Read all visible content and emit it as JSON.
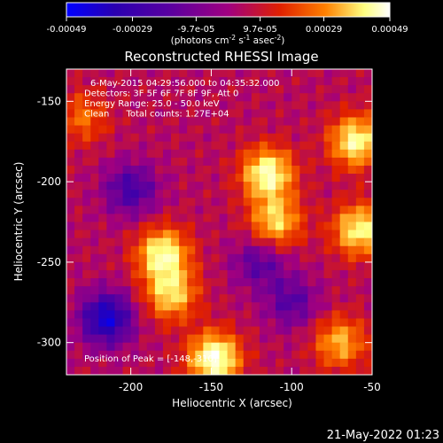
{
  "chart_data": {
    "type": "heatmap",
    "title": "Reconstructed RHESSI Image",
    "xlabel": "Heliocentric X (arcsec)",
    "ylabel": "Heliocentric Y (arcsec)",
    "xlim": [
      -240,
      -50
    ],
    "ylim": [
      -320,
      -130
    ],
    "x_ticks": [
      "-200",
      "-150",
      "-100",
      "-50"
    ],
    "x_tick_values": [
      -200,
      -150,
      -100,
      -50
    ],
    "y_ticks": [
      "-150",
      "-200",
      "-250",
      "-300"
    ],
    "y_tick_values": [
      -150,
      -200,
      -250,
      -300
    ],
    "colorbar": {
      "ticks": [
        "-0.00049",
        "-0.00029",
        "-9.7e-05",
        "9.7e-05",
        "0.00029",
        "0.00049"
      ],
      "tick_values": [
        -0.00049,
        -0.00029,
        -9.7e-05,
        9.7e-05,
        0.00029,
        0.00049
      ],
      "range": [
        -0.00049,
        0.00049
      ],
      "unit_prefix": "(photons cm",
      "unit_exp1": "-2",
      "unit_mid": " s",
      "unit_exp2": "-1",
      "unit_mid2": " asec",
      "unit_exp3": "-2",
      "unit_suffix": ")",
      "colormap": [
        "#0000ff",
        "#2a00b0",
        "#5a00a0",
        "#a00080",
        "#e02000",
        "#ff8000",
        "#ffff80",
        "#ffffff"
      ]
    },
    "annotations": [
      "6-May-2015 04:29:56.000 to 04:35:32.000",
      "Detectors: 3F 5F 6F 7F 8F 9F, Att 0",
      "Energy Range: 25.0 - 50.0 keV",
      "Clean      Total counts: 1.27E+04"
    ],
    "peak_label": "Position of Peak = [-148,-310]",
    "peak_position": [
      -148,
      -310
    ],
    "bright_regions": [
      {
        "x": -115,
        "y": -195,
        "level": 0.9
      },
      {
        "x": -110,
        "y": -225,
        "level": 0.7
      },
      {
        "x": -180,
        "y": -245,
        "level": 0.85
      },
      {
        "x": -175,
        "y": -270,
        "level": 0.7
      },
      {
        "x": -60,
        "y": -175,
        "level": 0.85
      },
      {
        "x": -58,
        "y": -230,
        "level": 0.8
      },
      {
        "x": -148,
        "y": -310,
        "level": 1.0
      },
      {
        "x": -70,
        "y": -300,
        "level": 0.6
      },
      {
        "x": -230,
        "y": -160,
        "level": 0.4
      }
    ],
    "dark_regions": [
      {
        "x": -215,
        "y": -285,
        "level": -0.8
      },
      {
        "x": -200,
        "y": -205,
        "level": -0.5
      },
      {
        "x": -120,
        "y": -250,
        "level": -0.4
      },
      {
        "x": -100,
        "y": -275,
        "level": -0.4
      }
    ]
  },
  "footer": {
    "timestamp": "21-May-2022 01:23"
  }
}
